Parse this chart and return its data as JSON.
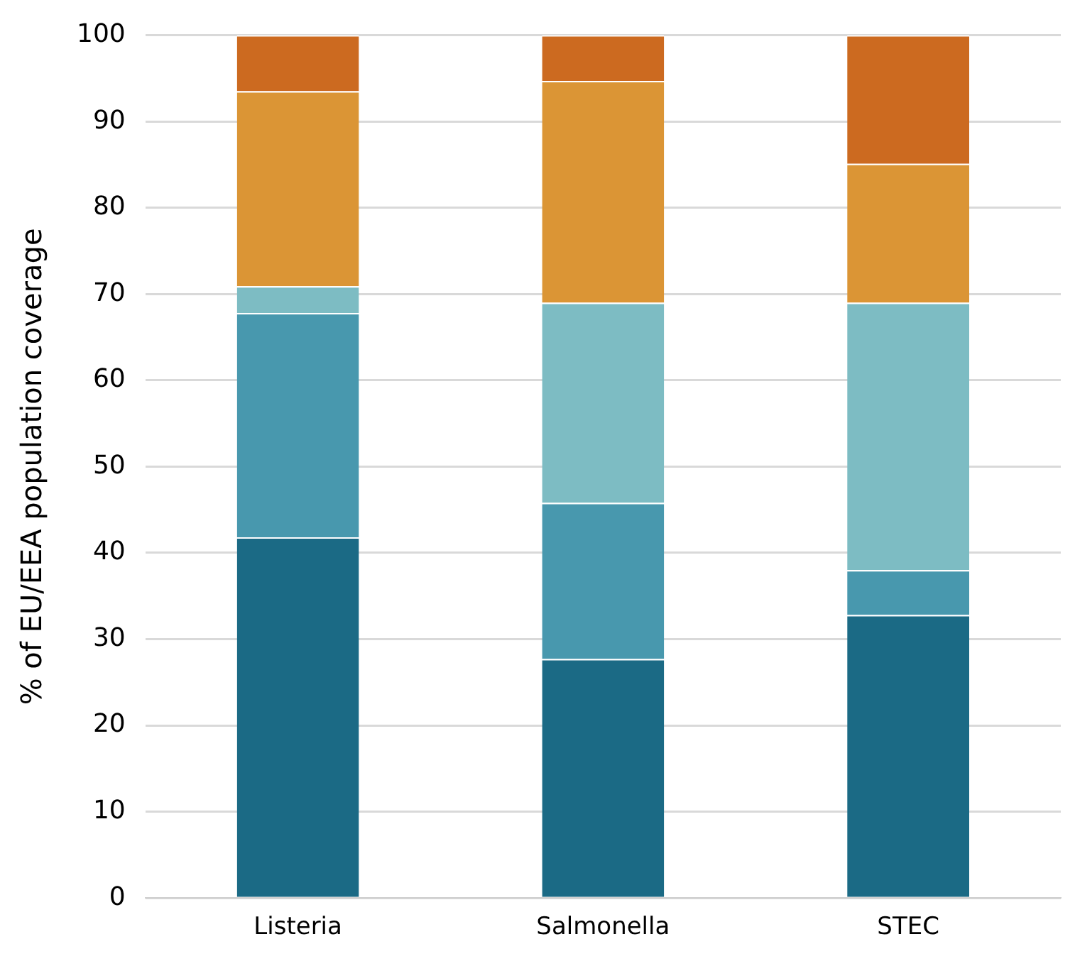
{
  "chart_data": {
    "type": "bar",
    "stacked": true,
    "ylabel": "% of EU/EEA population coverage",
    "categories": [
      "Listeria",
      "Salmonella",
      "STEC"
    ],
    "series": [
      {
        "color": "#1b6a85",
        "values": [
          41.8,
          27.7,
          32.8
        ]
      },
      {
        "color": "#4898ae",
        "values": [
          26,
          18.1,
          5.2
        ]
      },
      {
        "color": "#7dbcc3",
        "values": [
          3.1,
          23.2,
          31
        ]
      },
      {
        "color": "#db9535",
        "values": [
          22.6,
          25.7,
          16.1
        ]
      },
      {
        "color": "#cc6a20",
        "values": [
          6.5,
          5.3,
          14.9
        ]
      }
    ],
    "ylim": [
      0,
      100
    ],
    "yticks": [
      0,
      10,
      20,
      30,
      40,
      50,
      60,
      70,
      80,
      90,
      100
    ],
    "grid": "y",
    "legend": false
  }
}
